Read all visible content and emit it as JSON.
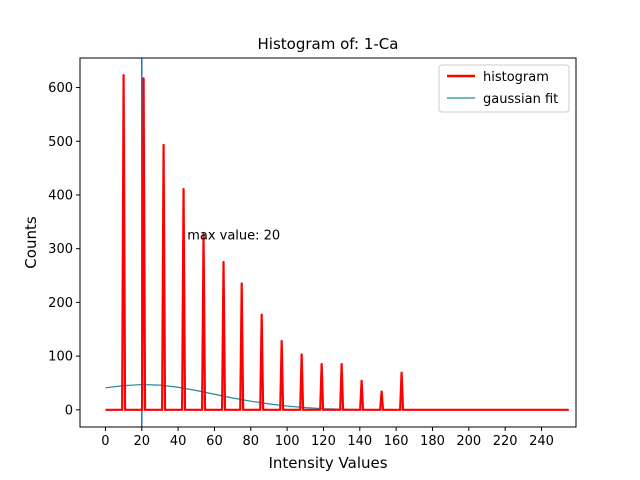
{
  "chart_data": {
    "type": "line",
    "title": "Histogram of: 1-Ca",
    "xlabel": "Intensity Values",
    "ylabel": "Counts",
    "xlim": [
      -14,
      259
    ],
    "ylim": [
      -32,
      655
    ],
    "xticks": [
      0,
      20,
      40,
      60,
      80,
      100,
      120,
      140,
      160,
      180,
      200,
      220,
      240
    ],
    "yticks": [
      0,
      100,
      200,
      300,
      400,
      500,
      600
    ],
    "legend_position": "top-right",
    "series": [
      {
        "name": "histogram",
        "color": "#ff0000",
        "peaks": [
          {
            "x": 10,
            "y": 623
          },
          {
            "x": 21,
            "y": 617
          },
          {
            "x": 32,
            "y": 493
          },
          {
            "x": 43,
            "y": 411
          },
          {
            "x": 54,
            "y": 327
          },
          {
            "x": 65,
            "y": 275
          },
          {
            "x": 75,
            "y": 235
          },
          {
            "x": 86,
            "y": 177
          },
          {
            "x": 97,
            "y": 128
          },
          {
            "x": 108,
            "y": 103
          },
          {
            "x": 119,
            "y": 85
          },
          {
            "x": 130,
            "y": 85
          },
          {
            "x": 141,
            "y": 54
          },
          {
            "x": 152,
            "y": 34
          },
          {
            "x": 163,
            "y": 69
          }
        ],
        "x_range": [
          0,
          255
        ]
      },
      {
        "name": "gaussian fit",
        "color": "#1f8a9c",
        "x": [
          0,
          10,
          20,
          30,
          40,
          50,
          60,
          70,
          80,
          90,
          100,
          110,
          120,
          130,
          140,
          160,
          180,
          200,
          220,
          240,
          255
        ],
        "y": [
          41,
          45,
          47,
          46,
          42,
          36,
          29,
          22,
          16,
          11,
          7,
          4,
          2,
          1,
          0.5,
          0,
          0,
          0,
          0,
          0,
          0
        ]
      }
    ],
    "vline": {
      "x": 20,
      "color": "#1f77b4"
    },
    "annotation": {
      "text": "max value: 20",
      "x": 45,
      "y": 310
    }
  }
}
